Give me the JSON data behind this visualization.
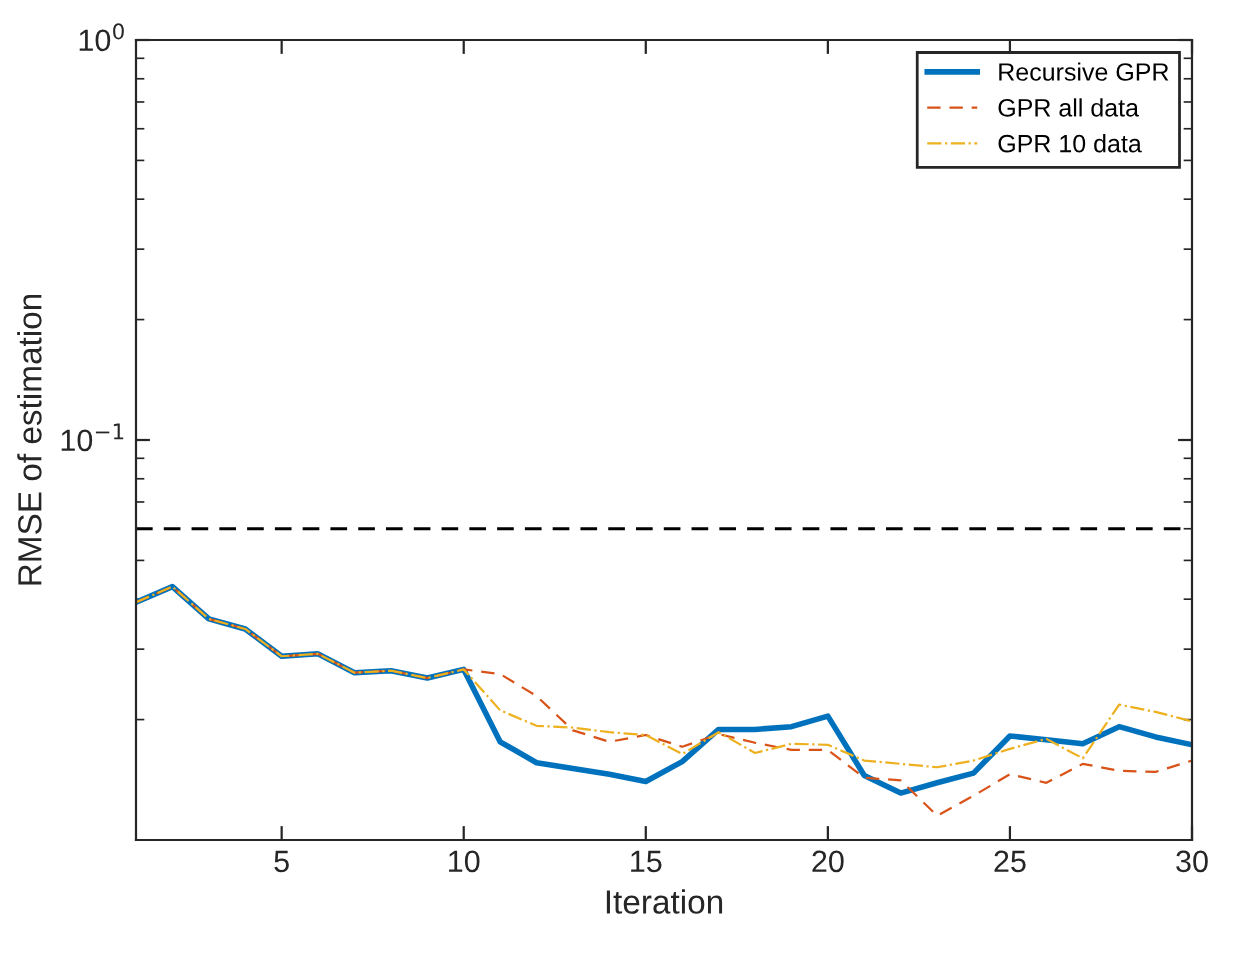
{
  "chart_data": {
    "type": "line",
    "xlabel": "Iteration",
    "ylabel": "RMSE of estimation",
    "x": [
      1,
      2,
      3,
      4,
      5,
      6,
      7,
      8,
      9,
      10,
      11,
      12,
      13,
      14,
      15,
      16,
      17,
      18,
      19,
      20,
      21,
      22,
      23,
      24,
      25,
      26,
      27,
      28,
      29,
      30
    ],
    "series": [
      {
        "name": "Recursive GPR",
        "color": "#0072bd",
        "line_style": "solid",
        "values": [
          0.0393,
          0.043,
          0.0357,
          0.0337,
          0.0288,
          0.0292,
          0.0262,
          0.0265,
          0.0254,
          0.0267,
          0.0176,
          0.0156,
          0.0151,
          0.0146,
          0.014,
          0.0157,
          0.0189,
          0.0189,
          0.0192,
          0.0204,
          0.0145,
          0.0131,
          0.0139,
          0.0147,
          0.0182,
          0.0178,
          0.0174,
          0.0192,
          0.0181,
          0.0173
        ]
      },
      {
        "name": "GPR all data",
        "color": "#d95319",
        "line_style": "dashed",
        "values": [
          0.0393,
          0.043,
          0.0357,
          0.0337,
          0.0288,
          0.0292,
          0.0262,
          0.0265,
          0.0254,
          0.0267,
          0.026,
          0.0229,
          0.0188,
          0.0176,
          0.0183,
          0.0171,
          0.0184,
          0.0175,
          0.0168,
          0.0168,
          0.0143,
          0.0141,
          0.0115,
          0.0129,
          0.0146,
          0.0139,
          0.0155,
          0.0149,
          0.0148,
          0.0158
        ]
      },
      {
        "name": "GPR 10 data",
        "color": "#edb120",
        "line_style": "dashdot",
        "values": [
          0.0393,
          0.043,
          0.0357,
          0.0337,
          0.0288,
          0.0292,
          0.0262,
          0.0265,
          0.0254,
          0.0267,
          0.0211,
          0.0193,
          0.0191,
          0.0186,
          0.0183,
          0.0164,
          0.0186,
          0.0165,
          0.0174,
          0.0173,
          0.0158,
          0.0155,
          0.0152,
          0.0158,
          0.0169,
          0.0179,
          0.016,
          0.0218,
          0.0209,
          0.0198
        ]
      }
    ],
    "log": "y",
    "xlim": [
      1,
      30
    ],
    "xticks": [
      5,
      10,
      15,
      20,
      25,
      30
    ],
    "ylim": [
      0.01,
      1
    ],
    "yticks": [
      {
        "value": 0.1,
        "label": "10$^{−1}$"
      },
      {
        "value": 1,
        "label": "10$^{0}$"
      }
    ],
    "ref_lines": [
      {
        "axis": "y",
        "value": 0.06,
        "color": "#000000",
        "line_style": "dashed"
      }
    ],
    "legend": "top right",
    "grid": false
  }
}
